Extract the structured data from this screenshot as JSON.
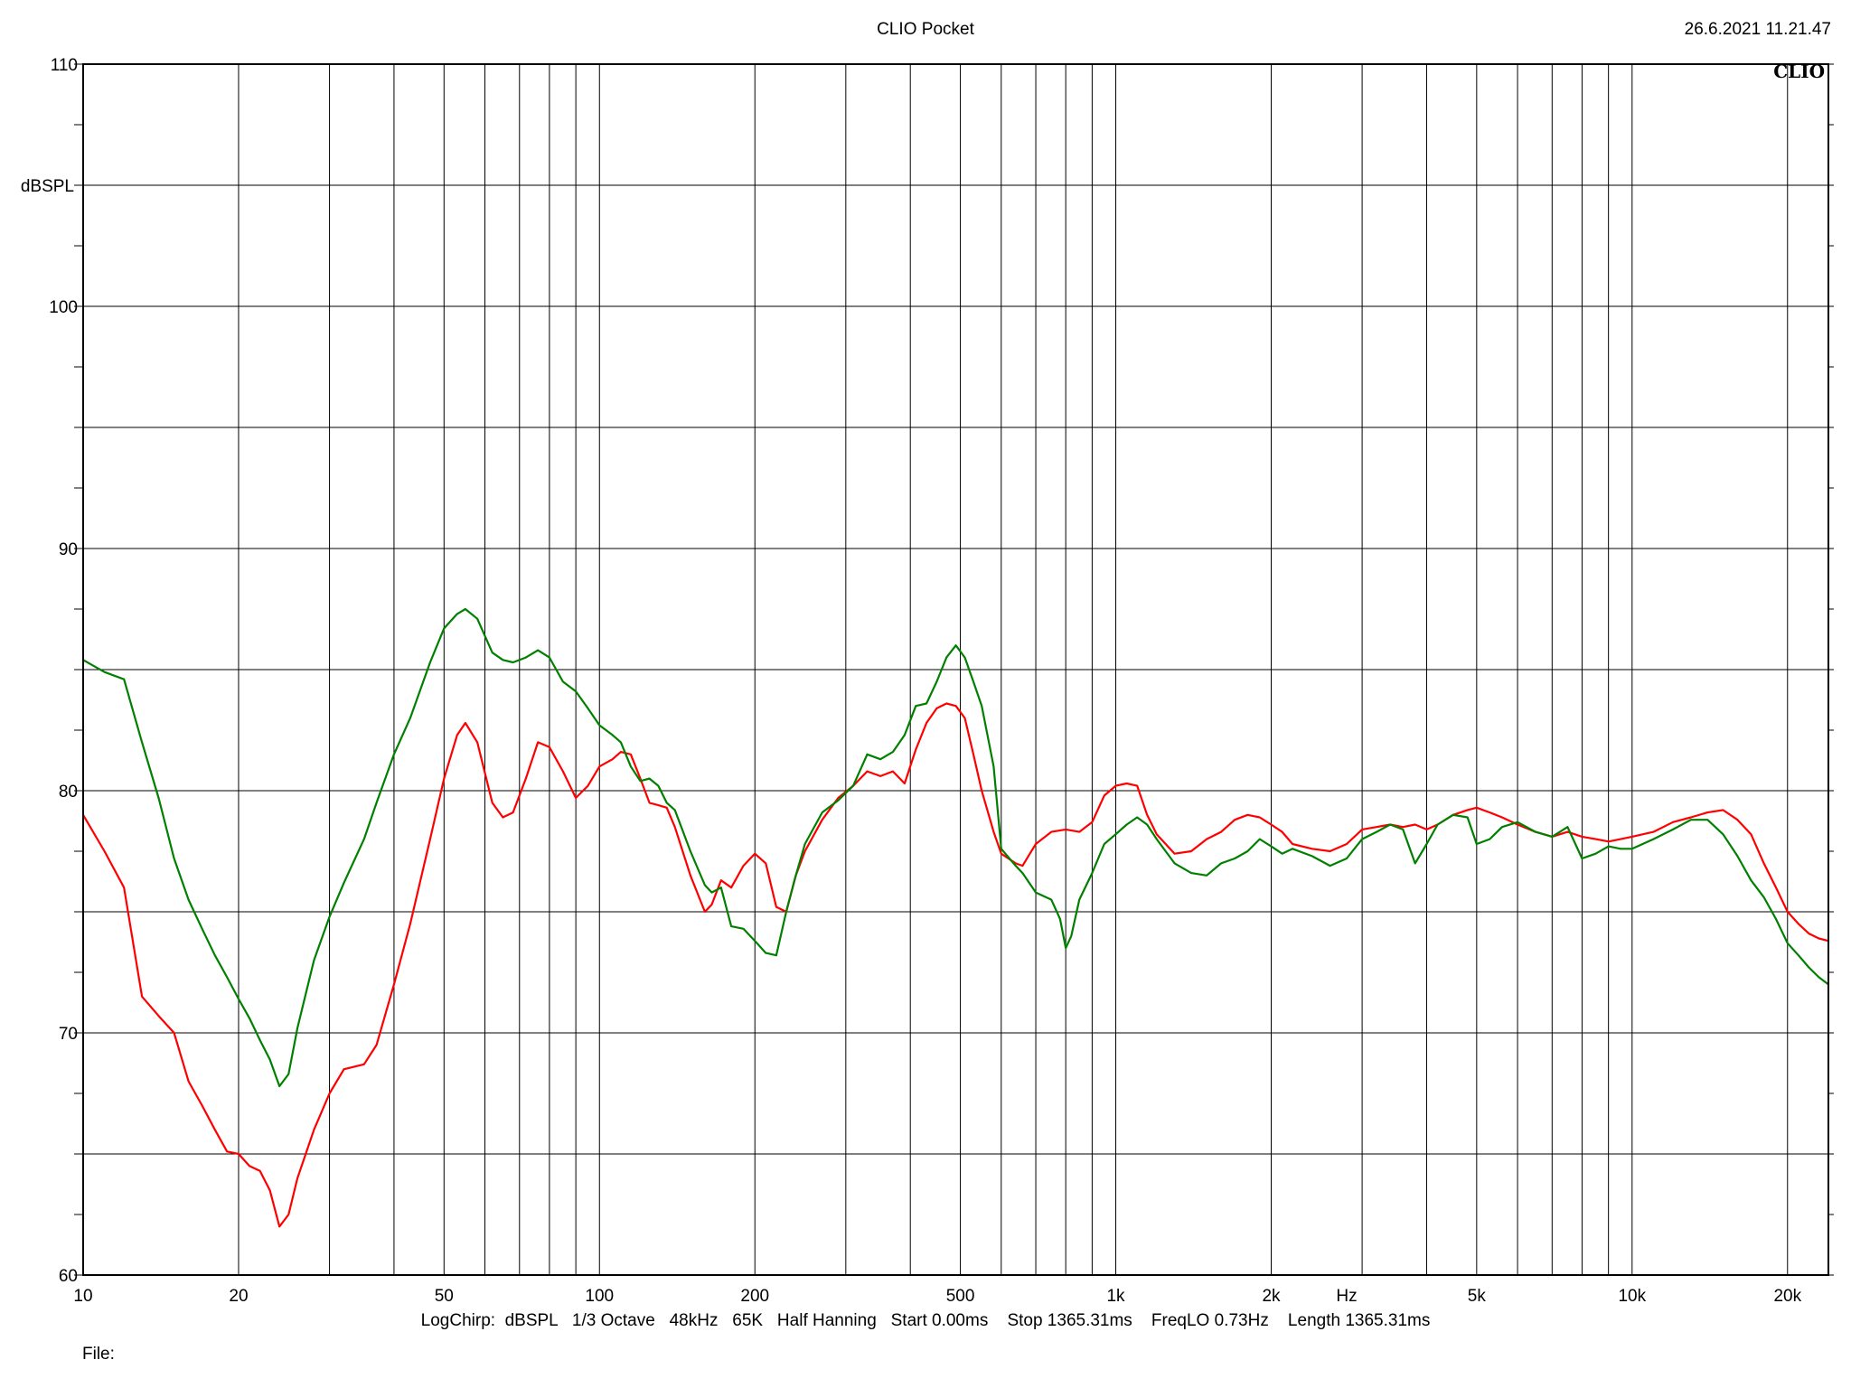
{
  "header": {
    "title": "CLIO Pocket",
    "date": "26.6.2021  11.21.47"
  },
  "brand_label": "CLIO",
  "footer": {
    "params": "LogChirp:  dBSPL   1/3 Octave   48kHz   65K   Half Hanning   Start 0.00ms    Stop 1365.31ms    FreqLO 0.73Hz    Length 1365.31ms",
    "file_label": "File:"
  },
  "chart_data": {
    "type": "line",
    "x_scale": "log",
    "xlim": [
      10,
      24000
    ],
    "ylim": [
      60,
      110
    ],
    "grid": true,
    "ylabel": "dBSPL",
    "xlabel": "Hz",
    "x_ticks": [
      {
        "value": 10,
        "label": "10"
      },
      {
        "value": 20,
        "label": "20"
      },
      {
        "value": 50,
        "label": "50"
      },
      {
        "value": 100,
        "label": "100"
      },
      {
        "value": 200,
        "label": "200"
      },
      {
        "value": 500,
        "label": "500"
      },
      {
        "value": 1000,
        "label": "1k"
      },
      {
        "value": 2000,
        "label": "2k"
      },
      {
        "value": 5000,
        "label": "5k"
      },
      {
        "value": 10000,
        "label": "10k"
      },
      {
        "value": 20000,
        "label": "20k"
      }
    ],
    "y_ticks": [
      {
        "value": 60,
        "label": "60"
      },
      {
        "value": 70,
        "label": "70"
      },
      {
        "value": 80,
        "label": "80"
      },
      {
        "value": 90,
        "label": "90"
      },
      {
        "value": 100,
        "label": "100"
      },
      {
        "value": 110,
        "label": "110"
      }
    ],
    "series": [
      {
        "color": "#ff0000",
        "points": [
          [
            10,
            79
          ],
          [
            11,
            77.5
          ],
          [
            12,
            76
          ],
          [
            13,
            71.5
          ],
          [
            14,
            70.7
          ],
          [
            15,
            70
          ],
          [
            16,
            68
          ],
          [
            17,
            67
          ],
          [
            18,
            66
          ],
          [
            19,
            65.1
          ],
          [
            20,
            65
          ],
          [
            21,
            64.5
          ],
          [
            22,
            64.3
          ],
          [
            23,
            63.5
          ],
          [
            24,
            62
          ],
          [
            25,
            62.5
          ],
          [
            26,
            64
          ],
          [
            28,
            66
          ],
          [
            30,
            67.5
          ],
          [
            32,
            68.5
          ],
          [
            35,
            68.7
          ],
          [
            37,
            69.5
          ],
          [
            40,
            72
          ],
          [
            43,
            74.5
          ],
          [
            47,
            78
          ],
          [
            50,
            80.5
          ],
          [
            53,
            82.3
          ],
          [
            55,
            82.8
          ],
          [
            58,
            82
          ],
          [
            62,
            79.5
          ],
          [
            65,
            78.9
          ],
          [
            68,
            79.1
          ],
          [
            72,
            80.5
          ],
          [
            76,
            82
          ],
          [
            80,
            81.8
          ],
          [
            85,
            80.8
          ],
          [
            90,
            79.7
          ],
          [
            95,
            80.2
          ],
          [
            100,
            81
          ],
          [
            106,
            81.3
          ],
          [
            110,
            81.6
          ],
          [
            115,
            81.5
          ],
          [
            120,
            80.5
          ],
          [
            125,
            79.5
          ],
          [
            130,
            79.4
          ],
          [
            135,
            79.3
          ],
          [
            140,
            78.5
          ],
          [
            150,
            76.5
          ],
          [
            160,
            75
          ],
          [
            165,
            75.3
          ],
          [
            172,
            76.3
          ],
          [
            180,
            76
          ],
          [
            190,
            76.9
          ],
          [
            200,
            77.4
          ],
          [
            210,
            77
          ],
          [
            220,
            75.2
          ],
          [
            230,
            75
          ],
          [
            240,
            76.5
          ],
          [
            250,
            77.5
          ],
          [
            270,
            78.8
          ],
          [
            290,
            79.7
          ],
          [
            310,
            80.2
          ],
          [
            330,
            80.8
          ],
          [
            350,
            80.6
          ],
          [
            370,
            80.8
          ],
          [
            390,
            80.3
          ],
          [
            410,
            81.7
          ],
          [
            430,
            82.8
          ],
          [
            450,
            83.4
          ],
          [
            470,
            83.6
          ],
          [
            490,
            83.5
          ],
          [
            510,
            83
          ],
          [
            530,
            81.5
          ],
          [
            550,
            80
          ],
          [
            580,
            78.3
          ],
          [
            600,
            77.4
          ],
          [
            640,
            77
          ],
          [
            660,
            76.9
          ],
          [
            700,
            77.8
          ],
          [
            750,
            78.3
          ],
          [
            800,
            78.4
          ],
          [
            850,
            78.3
          ],
          [
            900,
            78.7
          ],
          [
            950,
            79.8
          ],
          [
            1000,
            80.2
          ],
          [
            1050,
            80.3
          ],
          [
            1100,
            80.2
          ],
          [
            1150,
            79
          ],
          [
            1200,
            78.2
          ],
          [
            1300,
            77.4
          ],
          [
            1400,
            77.5
          ],
          [
            1500,
            78
          ],
          [
            1600,
            78.3
          ],
          [
            1700,
            78.8
          ],
          [
            1800,
            79
          ],
          [
            1900,
            78.9
          ],
          [
            2000,
            78.6
          ],
          [
            2100,
            78.3
          ],
          [
            2200,
            77.8
          ],
          [
            2400,
            77.6
          ],
          [
            2600,
            77.5
          ],
          [
            2800,
            77.8
          ],
          [
            3000,
            78.4
          ],
          [
            3200,
            78.5
          ],
          [
            3400,
            78.6
          ],
          [
            3600,
            78.5
          ],
          [
            3800,
            78.6
          ],
          [
            4000,
            78.4
          ],
          [
            4200,
            78.6
          ],
          [
            4500,
            79
          ],
          [
            4800,
            79.2
          ],
          [
            5000,
            79.3
          ],
          [
            5300,
            79.1
          ],
          [
            5600,
            78.9
          ],
          [
            6000,
            78.6
          ],
          [
            6500,
            78.3
          ],
          [
            7000,
            78.1
          ],
          [
            7500,
            78.3
          ],
          [
            8000,
            78.1
          ],
          [
            8500,
            78
          ],
          [
            9000,
            77.9
          ],
          [
            9500,
            78
          ],
          [
            10000,
            78.1
          ],
          [
            11000,
            78.3
          ],
          [
            12000,
            78.7
          ],
          [
            13000,
            78.9
          ],
          [
            14000,
            79.1
          ],
          [
            15000,
            79.2
          ],
          [
            16000,
            78.8
          ],
          [
            17000,
            78.2
          ],
          [
            18000,
            77
          ],
          [
            19000,
            76
          ],
          [
            20000,
            75
          ],
          [
            21000,
            74.5
          ],
          [
            22000,
            74.1
          ],
          [
            23000,
            73.9
          ],
          [
            24000,
            73.8
          ]
        ]
      },
      {
        "color": "#008000",
        "points": [
          [
            10,
            85.4
          ],
          [
            11,
            84.9
          ],
          [
            12,
            84.6
          ],
          [
            13,
            82
          ],
          [
            14,
            79.7
          ],
          [
            15,
            77.2
          ],
          [
            16,
            75.5
          ],
          [
            17,
            74.3
          ],
          [
            18,
            73.2
          ],
          [
            19,
            72.3
          ],
          [
            20,
            71.4
          ],
          [
            21,
            70.6
          ],
          [
            22,
            69.7
          ],
          [
            23,
            68.9
          ],
          [
            24,
            67.8
          ],
          [
            25,
            68.3
          ],
          [
            26,
            70.2
          ],
          [
            28,
            73
          ],
          [
            30,
            74.8
          ],
          [
            32,
            76.2
          ],
          [
            35,
            78
          ],
          [
            37,
            79.5
          ],
          [
            40,
            81.5
          ],
          [
            43,
            83
          ],
          [
            47,
            85.3
          ],
          [
            50,
            86.7
          ],
          [
            53,
            87.3
          ],
          [
            55,
            87.5
          ],
          [
            58,
            87.1
          ],
          [
            62,
            85.7
          ],
          [
            65,
            85.4
          ],
          [
            68,
            85.3
          ],
          [
            72,
            85.5
          ],
          [
            76,
            85.8
          ],
          [
            80,
            85.5
          ],
          [
            85,
            84.5
          ],
          [
            90,
            84.1
          ],
          [
            95,
            83.4
          ],
          [
            100,
            82.7
          ],
          [
            106,
            82.3
          ],
          [
            110,
            82
          ],
          [
            115,
            81
          ],
          [
            120,
            80.4
          ],
          [
            125,
            80.5
          ],
          [
            130,
            80.2
          ],
          [
            135,
            79.5
          ],
          [
            140,
            79.2
          ],
          [
            150,
            77.5
          ],
          [
            160,
            76.1
          ],
          [
            165,
            75.8
          ],
          [
            172,
            76
          ],
          [
            180,
            74.4
          ],
          [
            190,
            74.3
          ],
          [
            200,
            73.8
          ],
          [
            210,
            73.3
          ],
          [
            220,
            73.2
          ],
          [
            230,
            75
          ],
          [
            240,
            76.5
          ],
          [
            250,
            77.8
          ],
          [
            270,
            79.1
          ],
          [
            290,
            79.6
          ],
          [
            310,
            80.2
          ],
          [
            330,
            81.5
          ],
          [
            350,
            81.3
          ],
          [
            370,
            81.6
          ],
          [
            390,
            82.3
          ],
          [
            410,
            83.5
          ],
          [
            430,
            83.6
          ],
          [
            450,
            84.5
          ],
          [
            470,
            85.5
          ],
          [
            490,
            86
          ],
          [
            510,
            85.5
          ],
          [
            530,
            84.5
          ],
          [
            550,
            83.5
          ],
          [
            580,
            81
          ],
          [
            600,
            77.6
          ],
          [
            640,
            76.9
          ],
          [
            660,
            76.6
          ],
          [
            700,
            75.8
          ],
          [
            750,
            75.5
          ],
          [
            780,
            74.7
          ],
          [
            800,
            73.5
          ],
          [
            820,
            74
          ],
          [
            850,
            75.5
          ],
          [
            900,
            76.6
          ],
          [
            950,
            77.8
          ],
          [
            1000,
            78.2
          ],
          [
            1050,
            78.6
          ],
          [
            1100,
            78.9
          ],
          [
            1150,
            78.6
          ],
          [
            1200,
            78
          ],
          [
            1300,
            77
          ],
          [
            1400,
            76.6
          ],
          [
            1500,
            76.5
          ],
          [
            1600,
            77
          ],
          [
            1700,
            77.2
          ],
          [
            1800,
            77.5
          ],
          [
            1900,
            78
          ],
          [
            2000,
            77.7
          ],
          [
            2100,
            77.4
          ],
          [
            2200,
            77.6
          ],
          [
            2400,
            77.3
          ],
          [
            2600,
            76.9
          ],
          [
            2800,
            77.2
          ],
          [
            3000,
            78
          ],
          [
            3200,
            78.3
          ],
          [
            3400,
            78.6
          ],
          [
            3600,
            78.4
          ],
          [
            3800,
            77
          ],
          [
            4000,
            77.8
          ],
          [
            4200,
            78.6
          ],
          [
            4500,
            79
          ],
          [
            4800,
            78.9
          ],
          [
            5000,
            77.8
          ],
          [
            5300,
            78
          ],
          [
            5600,
            78.5
          ],
          [
            6000,
            78.7
          ],
          [
            6500,
            78.3
          ],
          [
            7000,
            78.1
          ],
          [
            7500,
            78.5
          ],
          [
            8000,
            77.2
          ],
          [
            8500,
            77.4
          ],
          [
            9000,
            77.7
          ],
          [
            9500,
            77.6
          ],
          [
            10000,
            77.6
          ],
          [
            11000,
            78
          ],
          [
            12000,
            78.4
          ],
          [
            13000,
            78.8
          ],
          [
            14000,
            78.8
          ],
          [
            15000,
            78.2
          ],
          [
            16000,
            77.3
          ],
          [
            17000,
            76.3
          ],
          [
            18000,
            75.6
          ],
          [
            19000,
            74.7
          ],
          [
            20000,
            73.7
          ],
          [
            21000,
            73.2
          ],
          [
            22000,
            72.7
          ],
          [
            23000,
            72.3
          ],
          [
            24000,
            72
          ]
        ]
      }
    ]
  }
}
